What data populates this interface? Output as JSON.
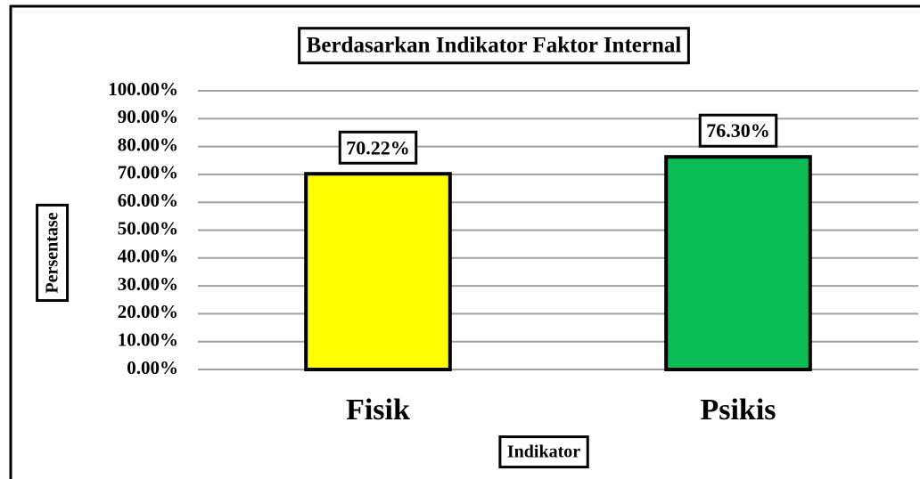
{
  "chart_data": {
    "type": "bar",
    "title": "Berdasarkan Indikator Faktor Internal",
    "x_label": "Indikator",
    "y_label": "Persentase",
    "categories": [
      "Fisik",
      "Psikis"
    ],
    "values": [
      70.22,
      76.3
    ],
    "value_labels": [
      "70.22%",
      "76.30%"
    ],
    "colors": [
      "#ffff00",
      "#0cbc54"
    ],
    "ylim": [
      0,
      100
    ],
    "yticks": [
      {
        "value": 0,
        "label": "0.00%"
      },
      {
        "value": 10,
        "label": "10.00%"
      },
      {
        "value": 20,
        "label": "20.00%"
      },
      {
        "value": 30,
        "label": "30.00%"
      },
      {
        "value": 40,
        "label": "40.00%"
      },
      {
        "value": 50,
        "label": "50.00%"
      },
      {
        "value": 60,
        "label": "60.00%"
      },
      {
        "value": 70,
        "label": "70.00%"
      },
      {
        "value": 80,
        "label": "80.00%"
      },
      {
        "value": 90,
        "label": "90.00%"
      },
      {
        "value": 100,
        "label": "100.00%"
      }
    ],
    "grid": true
  }
}
